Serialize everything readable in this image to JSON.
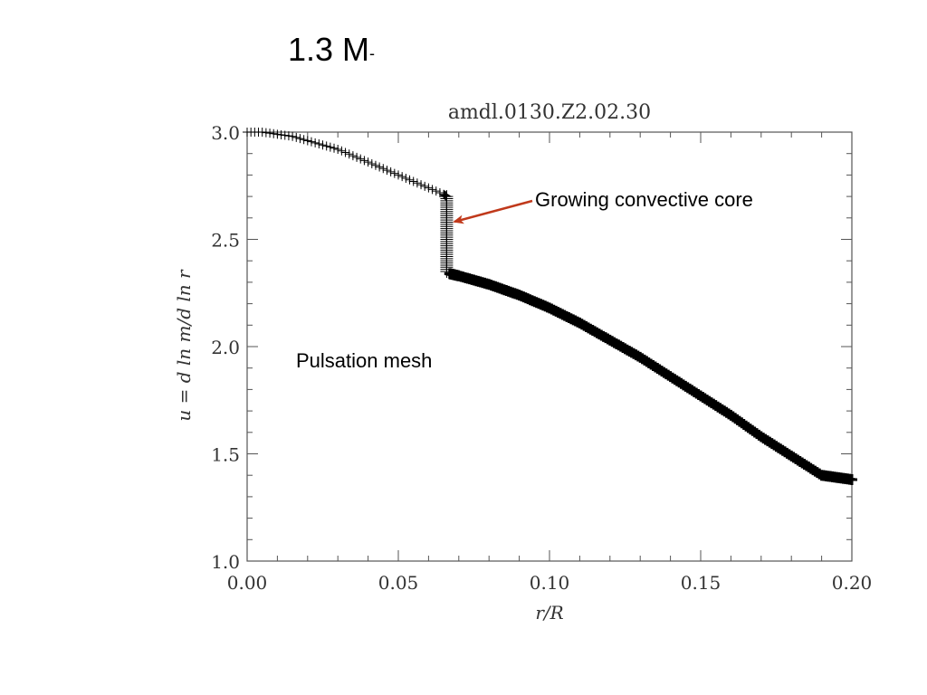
{
  "slide": {
    "title_main": "1.3 M",
    "title_sub": "-"
  },
  "annotations": {
    "convective_core": "Growing convective core",
    "pulsation_mesh": "Pulsation mesh"
  },
  "colors": {
    "arrow": "#c0391b",
    "data": "#000000",
    "axis": "#555555"
  },
  "chart_data": {
    "type": "scatter",
    "marker": "plus",
    "title": "amdl.0130.Z2.02.30",
    "xlabel": "r/R",
    "ylabel": "u = d ln m/d ln r",
    "xlim": [
      0.0,
      0.2
    ],
    "ylim": [
      1.0,
      3.0
    ],
    "xticks": [
      0.0,
      0.05,
      0.1,
      0.15,
      0.2
    ],
    "xtick_labels": [
      "0.00",
      "0.05",
      "0.10",
      "0.15",
      "0.20"
    ],
    "yticks": [
      1.0,
      1.5,
      2.0,
      2.5,
      3.0
    ],
    "ytick_labels": [
      "1.0",
      "1.5",
      "2.0",
      "2.5",
      "3.0"
    ],
    "grid": false,
    "series": [
      {
        "x": [
          0.0,
          0.005,
          0.01,
          0.015,
          0.02,
          0.025,
          0.03,
          0.035,
          0.04,
          0.045,
          0.05,
          0.055,
          0.06,
          0.065,
          0.066
        ],
        "y": [
          3.0,
          3.0,
          2.99,
          2.98,
          2.96,
          2.94,
          2.92,
          2.89,
          2.86,
          2.83,
          2.8,
          2.77,
          2.74,
          2.71,
          2.7
        ]
      },
      {
        "x": [
          0.066,
          0.066,
          0.066,
          0.066,
          0.066,
          0.066,
          0.066,
          0.066
        ],
        "y": [
          2.7,
          2.65,
          2.6,
          2.55,
          2.5,
          2.45,
          2.4,
          2.35
        ]
      },
      {
        "x": [
          0.067,
          0.07,
          0.08,
          0.09,
          0.1,
          0.11,
          0.12,
          0.13,
          0.14,
          0.15,
          0.16,
          0.17,
          0.18,
          0.19,
          0.2
        ],
        "y": [
          2.34,
          2.33,
          2.29,
          2.24,
          2.18,
          2.11,
          2.03,
          1.95,
          1.86,
          1.77,
          1.68,
          1.58,
          1.49,
          1.4,
          1.38
        ]
      }
    ]
  }
}
